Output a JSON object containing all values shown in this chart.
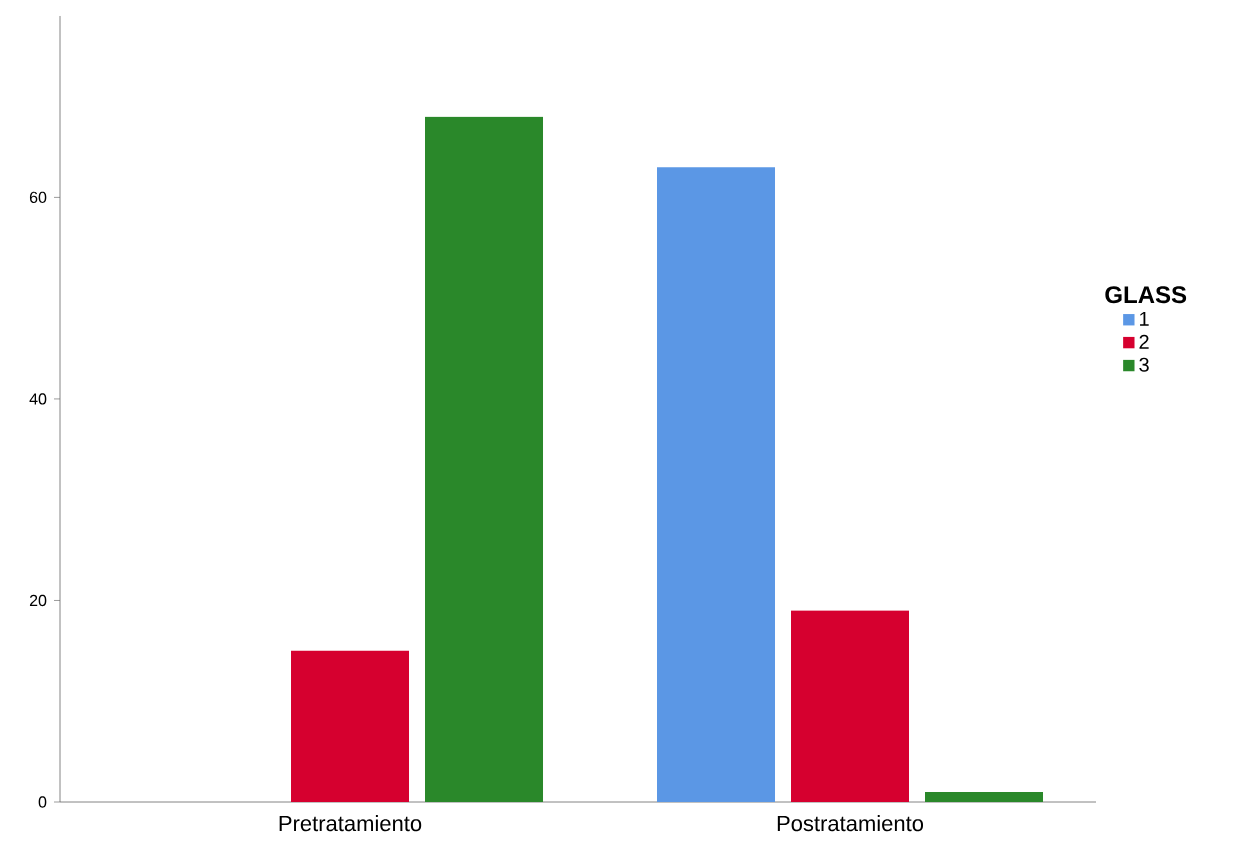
{
  "chart_data": {
    "type": "bar",
    "legend_title": "GLASS",
    "categories": [
      "Pretratamiento",
      "Postratamiento"
    ],
    "series": [
      {
        "name": "1",
        "color": "#5b97e5",
        "values": [
          0,
          63
        ]
      },
      {
        "name": "2",
        "color": "#d6002f",
        "values": [
          15,
          19
        ]
      },
      {
        "name": "3",
        "color": "#2a882a",
        "values": [
          68,
          1
        ]
      }
    ],
    "ylim": [
      0,
      78
    ],
    "yticks": [
      0,
      20,
      40,
      60
    ],
    "grid": false,
    "legend": "right"
  }
}
